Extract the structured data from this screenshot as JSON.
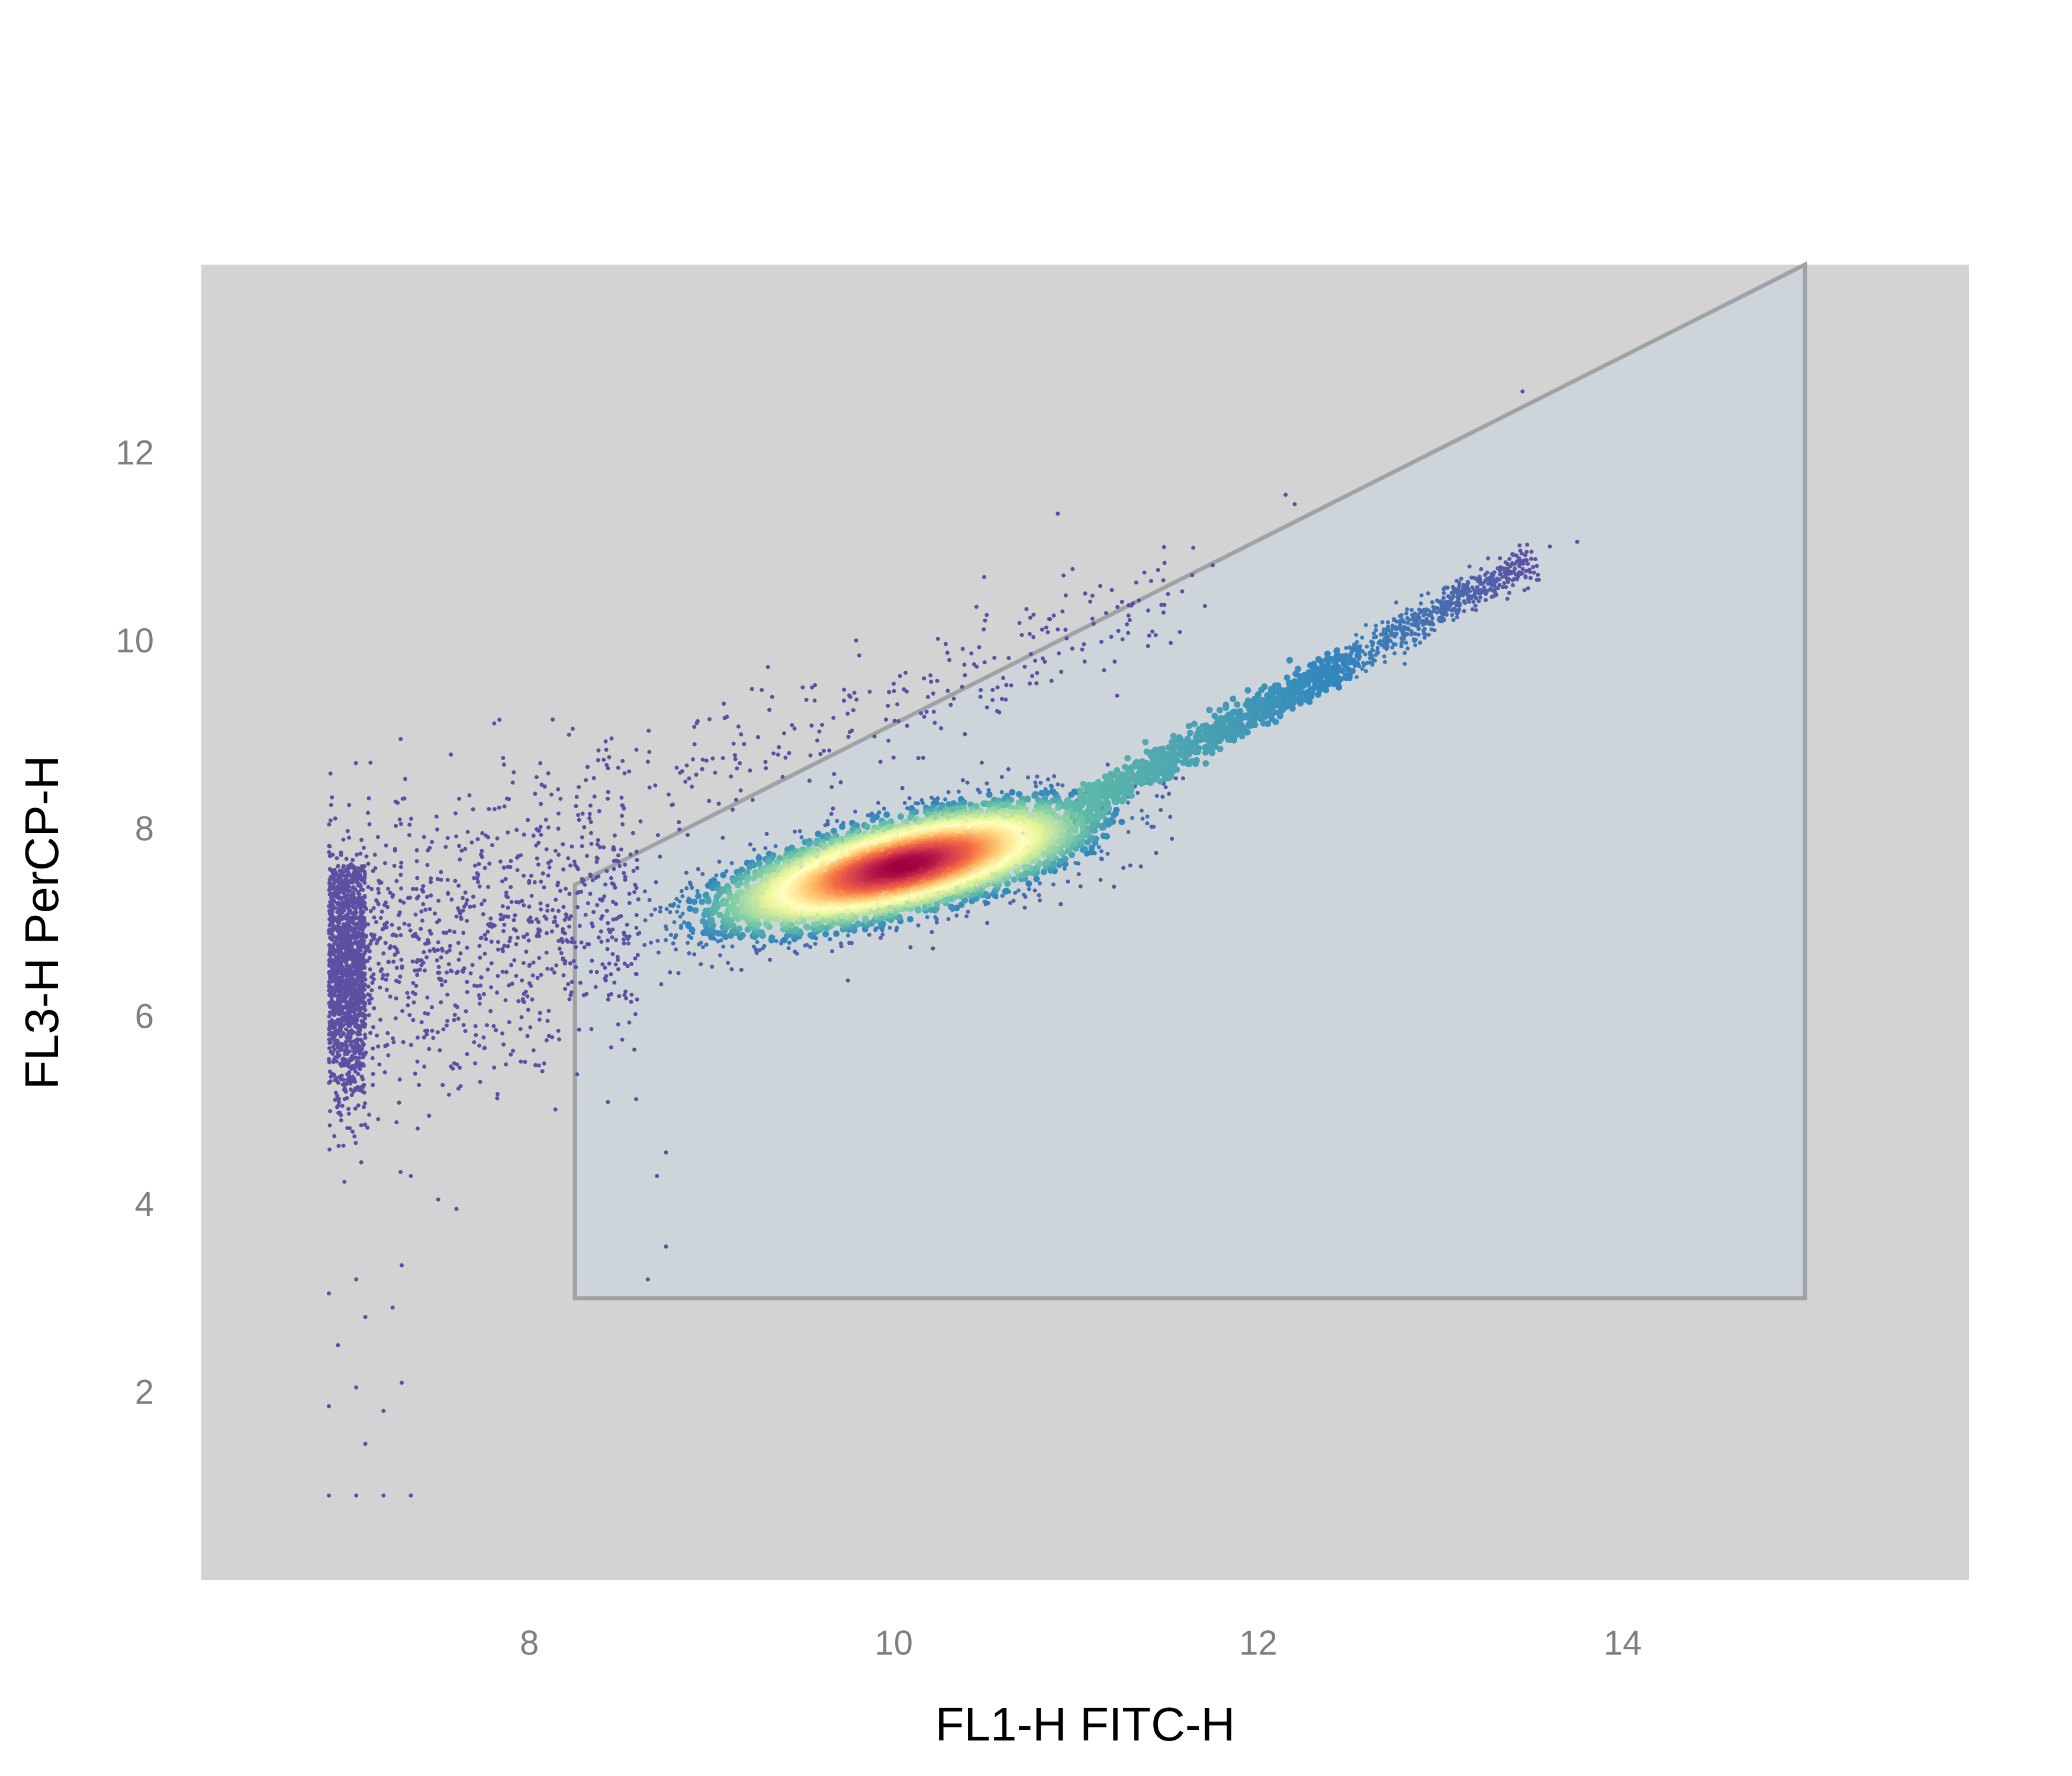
{
  "chart_data": {
    "type": "scatter",
    "title": "",
    "xlabel": "FL1-H FITC-H",
    "ylabel": "FL3-H PerCP-H",
    "xlim": [
      6.2,
      15.9
    ],
    "ylim": [
      0,
      14
    ],
    "x_ticks": [
      "8",
      "10",
      "12",
      "14"
    ],
    "y_ticks": [
      "2",
      "4",
      "6",
      "8",
      "10",
      "12"
    ],
    "grid": false,
    "legend": "none",
    "panel_color": "#d3d3d3",
    "gate": {
      "vertices": [
        [
          8.25,
          3.0
        ],
        [
          8.25,
          7.4
        ],
        [
          15.0,
          14.0
        ],
        [
          15.0,
          3.0
        ]
      ],
      "fill": "#cbd5da",
      "stroke": "#a0a3a5"
    },
    "density_colormap": [
      "#5e4fa2",
      "#3288bd",
      "#66c2a5",
      "#abdda4",
      "#e6f598",
      "#ffffbf",
      "#fee08b",
      "#fdae61",
      "#f46d43",
      "#d53e4f",
      "#9e0142"
    ],
    "populations": [
      {
        "name": "main",
        "center": [
          10.05,
          7.6
        ],
        "direction": [
          1.0,
          0.55
        ],
        "spread_major": 0.55,
        "spread_minor": 0.22,
        "count": 5200
      },
      {
        "name": "diagonal tail",
        "from": [
          11.0,
          8.2
        ],
        "to": [
          13.5,
          10.85
        ],
        "spread": 0.09,
        "count": 1400
      },
      {
        "name": "left vertical band",
        "x": [
          6.9,
          7.1
        ],
        "y_center": 6.5,
        "spread": 0.7,
        "count": 1300
      },
      {
        "name": "left cloud",
        "x_range": [
          6.9,
          8.6
        ],
        "y_center": 6.7,
        "spread": 0.8,
        "count": 1000
      },
      {
        "name": "upper scatter",
        "from": [
          8.0,
          7.9
        ],
        "to": [
          11.5,
          10.5
        ],
        "spread": 0.35,
        "count": 300
      }
    ],
    "outliers": [
      [
        6.9,
        0.9
      ],
      [
        7.05,
        0.9
      ],
      [
        7.2,
        0.9
      ],
      [
        7.35,
        0.9
      ],
      [
        7.1,
        1.45
      ],
      [
        6.9,
        1.85
      ],
      [
        7.2,
        1.8
      ],
      [
        7.05,
        2.05
      ],
      [
        7.3,
        2.1
      ],
      [
        6.95,
        2.5
      ],
      [
        7.1,
        2.8
      ],
      [
        7.25,
        2.9
      ],
      [
        6.9,
        3.05
      ],
      [
        7.05,
        3.2
      ],
      [
        7.3,
        3.35
      ],
      [
        8.65,
        3.2
      ],
      [
        8.75,
        3.55
      ],
      [
        8.7,
        4.3
      ],
      [
        8.75,
        4.55
      ],
      [
        7.6,
        3.95
      ],
      [
        7.5,
        4.05
      ],
      [
        7.35,
        4.3
      ],
      [
        10.9,
        11.35
      ],
      [
        12.15,
        11.55
      ],
      [
        12.2,
        11.45
      ],
      [
        13.45,
        12.65
      ],
      [
        11.45,
        10.75
      ],
      [
        11.75,
        10.8
      ],
      [
        13.75,
        11.05
      ],
      [
        13.6,
        11.0
      ],
      [
        11.05,
        10.5
      ],
      [
        10.6,
        9.6
      ],
      [
        9.5,
        9.5
      ]
    ]
  }
}
